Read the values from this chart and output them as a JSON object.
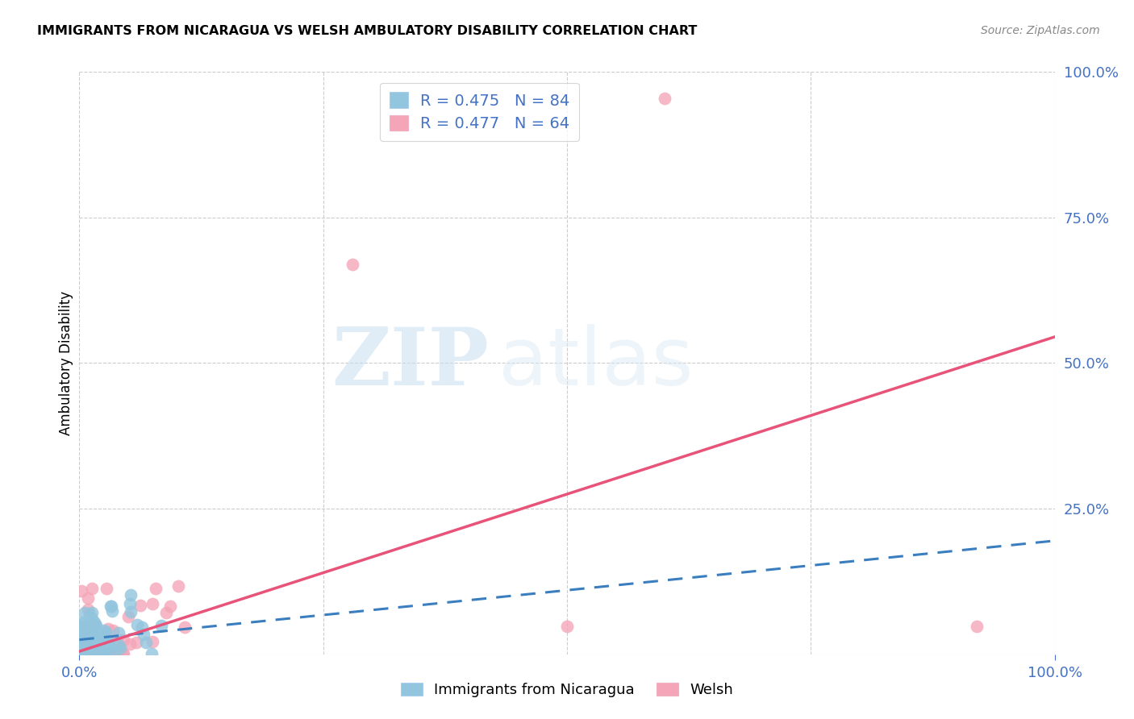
{
  "title": "IMMIGRANTS FROM NICARAGUA VS WELSH AMBULATORY DISABILITY CORRELATION CHART",
  "source": "Source: ZipAtlas.com",
  "ylabel": "Ambulatory Disability",
  "xlim": [
    0,
    1.0
  ],
  "ylim": [
    0,
    1.0
  ],
  "background_color": "#ffffff",
  "blue_color": "#92c5de",
  "pink_color": "#f4a6b8",
  "blue_line_color": "#3a7ebf",
  "pink_line_color": "#e8537a",
  "legend_blue_label": "R = 0.475   N = 84",
  "legend_pink_label": "R = 0.477   N = 64",
  "legend_bottom_blue": "Immigrants from Nicaragua",
  "legend_bottom_pink": "Welsh",
  "watermark_zip": "ZIP",
  "watermark_atlas": "atlas",
  "blue_R": 0.475,
  "blue_N": 84,
  "pink_R": 0.477,
  "pink_N": 64,
  "blue_slope": 0.17,
  "blue_intercept": 0.025,
  "pink_slope": 0.54,
  "pink_intercept": 0.005
}
